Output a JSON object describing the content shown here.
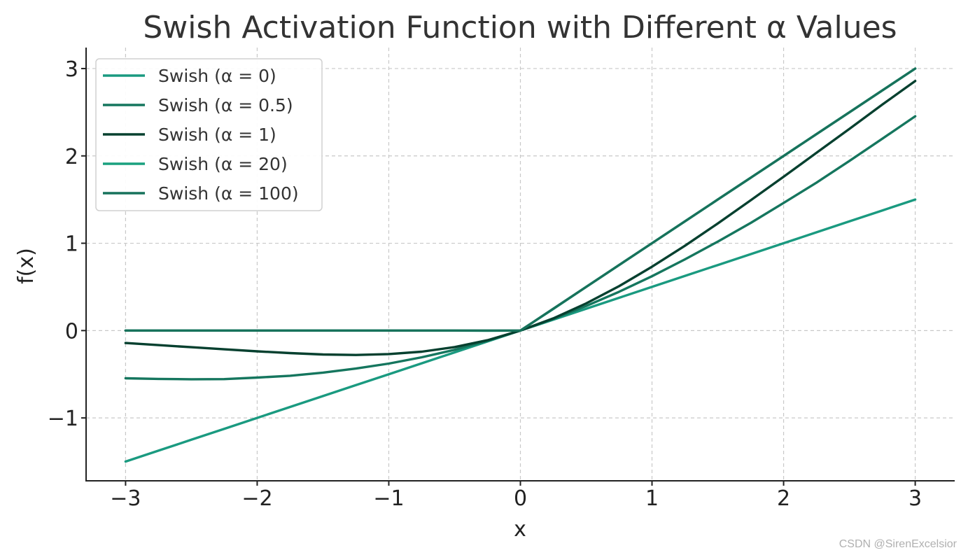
{
  "chart_data": {
    "type": "line",
    "title": "Swish Activation Function with Different α Values",
    "xlabel": "x",
    "ylabel": "f(x)",
    "xlim": [
      -3.3,
      3.3
    ],
    "ylim": [
      -1.72,
      3.24
    ],
    "grid": true,
    "legend_position": "top-left",
    "x_ticks": [
      -3,
      -2,
      -1,
      0,
      1,
      2,
      3
    ],
    "x_tick_labels": [
      "−3",
      "−2",
      "−1",
      "0",
      "1",
      "2",
      "3"
    ],
    "y_ticks": [
      -1,
      0,
      1,
      2,
      3
    ],
    "y_tick_labels": [
      "−1",
      "0",
      "1",
      "2",
      "3"
    ],
    "x": [
      -3.0,
      -2.75,
      -2.5,
      -2.25,
      -2.0,
      -1.75,
      -1.5,
      -1.25,
      -1.0,
      -0.75,
      -0.5,
      -0.25,
      0.0,
      0.25,
      0.5,
      0.75,
      1.0,
      1.25,
      1.5,
      1.75,
      2.0,
      2.25,
      2.5,
      2.75,
      3.0
    ],
    "series": [
      {
        "name": "Swish (α = 0)",
        "color": "#1a9a80",
        "values": [
          -1.5,
          -1.375,
          -1.25,
          -1.125,
          -1.0,
          -0.875,
          -0.75,
          -0.625,
          -0.5,
          -0.375,
          -0.25,
          -0.125,
          0.0,
          0.125,
          0.25,
          0.375,
          0.5,
          0.625,
          0.75,
          0.875,
          1.0,
          1.125,
          1.25,
          1.375,
          1.5
        ]
      },
      {
        "name": "Swish (α = 0.5)",
        "color": "#15765e",
        "values": [
          -0.546,
          -0.553,
          -0.557,
          -0.556,
          -0.538,
          -0.517,
          -0.481,
          -0.435,
          -0.378,
          -0.306,
          -0.22,
          -0.117,
          0.0,
          0.133,
          0.282,
          0.444,
          0.622,
          0.815,
          1.019,
          1.233,
          1.462,
          1.694,
          1.943,
          2.197,
          2.454
        ]
      },
      {
        "name": "Swish (α = 1)",
        "color": "#06402f",
        "values": [
          -0.142,
          -0.166,
          -0.19,
          -0.214,
          -0.238,
          -0.258,
          -0.274,
          -0.279,
          -0.269,
          -0.242,
          -0.189,
          -0.11,
          0.0,
          0.14,
          0.311,
          0.508,
          0.731,
          0.971,
          1.226,
          1.492,
          1.762,
          2.036,
          2.31,
          2.588,
          2.858
        ]
      },
      {
        "name": "Swish (α = 20)",
        "color": "#1aa07f",
        "values": [
          0.0,
          0.0,
          0.0,
          0.0,
          0.0,
          0.0,
          0.0,
          0.0,
          0.0,
          0.0,
          0.0,
          -0.002,
          0.0,
          0.248,
          0.5,
          0.75,
          1.0,
          1.25,
          1.5,
          1.75,
          2.0,
          2.25,
          2.5,
          2.75,
          3.0
        ]
      },
      {
        "name": "Swish (α = 100)",
        "color": "#17725b",
        "values": [
          0.0,
          0.0,
          0.0,
          0.0,
          0.0,
          0.0,
          0.0,
          0.0,
          0.0,
          0.0,
          0.0,
          0.0,
          0.0,
          0.25,
          0.5,
          0.75,
          1.0,
          1.25,
          1.5,
          1.75,
          2.0,
          2.25,
          2.5,
          2.75,
          3.0
        ]
      }
    ]
  },
  "watermark": "CSDN @SirenExcelsior"
}
